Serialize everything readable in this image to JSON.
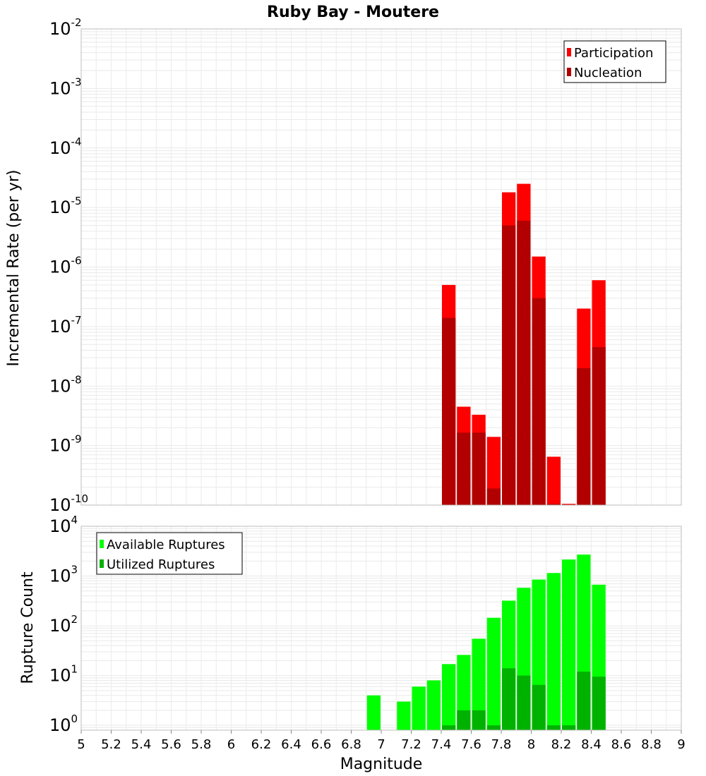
{
  "chart_data": [
    {
      "type": "bar",
      "title": "Ruby Bay - Moutere",
      "ylabel": "Incremental Rate (per yr)",
      "yscale": "log",
      "ylim": [
        1e-10,
        0.01
      ],
      "xlim": [
        5,
        9
      ],
      "yticks": [
        {
          "base": "10",
          "exp": "-10"
        },
        {
          "base": "10",
          "exp": "-9"
        },
        {
          "base": "10",
          "exp": "-8"
        },
        {
          "base": "10",
          "exp": "-7"
        },
        {
          "base": "10",
          "exp": "-6"
        },
        {
          "base": "10",
          "exp": "-5"
        },
        {
          "base": "10",
          "exp": "-4"
        },
        {
          "base": "10",
          "exp": "-3"
        },
        {
          "base": "10",
          "exp": "-2"
        }
      ],
      "legend_position": "top-right",
      "grid": true,
      "x": [
        7.45,
        7.55,
        7.65,
        7.75,
        7.85,
        7.95,
        8.05,
        8.15,
        8.25,
        8.35,
        8.45
      ],
      "series": [
        {
          "name": "Participation",
          "color": "#ff0000",
          "values": [
            5e-07,
            4.5e-09,
            3.3e-09,
            1.4e-09,
            1.8e-05,
            2.5e-05,
            1.5e-06,
            6.5e-10,
            1.05e-10,
            2e-07,
            6e-07
          ]
        },
        {
          "name": "Nucleation",
          "color": "#b20000",
          "values": [
            1.4e-07,
            1.65e-09,
            1.65e-09,
            1.9e-10,
            5e-06,
            6e-06,
            3e-07,
            1.05e-10,
            1.02e-10,
            2e-08,
            4.5e-08
          ]
        }
      ]
    },
    {
      "type": "bar",
      "xlabel": "Magnitude",
      "ylabel": "Rupture Count",
      "yscale": "log",
      "ylim": [
        0.8,
        10000
      ],
      "xlim": [
        5,
        9
      ],
      "xticks": [
        "5",
        "5.2",
        "5.4",
        "5.6",
        "5.8",
        "6",
        "6.2",
        "6.4",
        "6.6",
        "6.8",
        "7",
        "7.2",
        "7.4",
        "7.6",
        "7.8",
        "8",
        "8.2",
        "8.4",
        "8.6",
        "8.8",
        "9"
      ],
      "yticks": [
        {
          "base": "10",
          "exp": "0"
        },
        {
          "base": "10",
          "exp": "1"
        },
        {
          "base": "10",
          "exp": "2"
        },
        {
          "base": "10",
          "exp": "3"
        },
        {
          "base": "10",
          "exp": "4"
        }
      ],
      "legend_position": "top-left",
      "grid": true,
      "x": [
        6.95,
        7.15,
        7.25,
        7.35,
        7.45,
        7.55,
        7.65,
        7.75,
        7.85,
        7.95,
        8.05,
        8.15,
        8.25,
        8.35,
        8.45
      ],
      "series": [
        {
          "name": "Available Ruptures",
          "color": "#00ff00",
          "values": [
            4,
            3,
            6,
            8,
            17,
            26,
            55,
            145,
            320,
            580,
            850,
            1150,
            2150,
            2700,
            670
          ]
        },
        {
          "name": "Utilized Ruptures",
          "color": "#00b200",
          "values": [
            0,
            0,
            0,
            0,
            1,
            2,
            2,
            1,
            14,
            10,
            6.5,
            1,
            1,
            12,
            9.5
          ]
        }
      ]
    }
  ]
}
